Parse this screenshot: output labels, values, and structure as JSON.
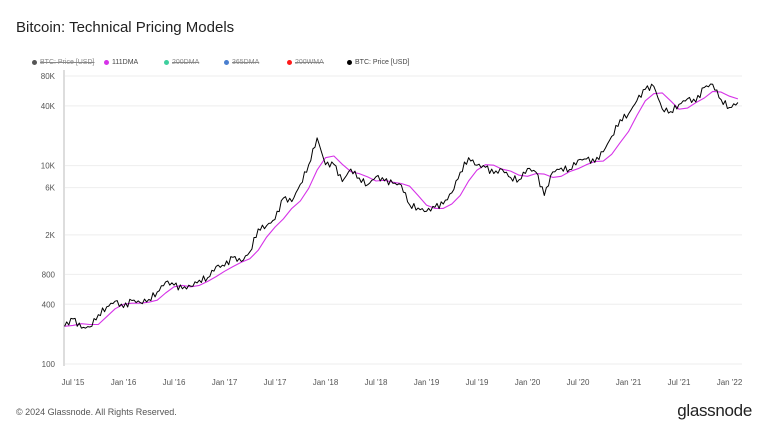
{
  "title": "Bitcoin: Technical Pricing Models",
  "legend": [
    {
      "label": "BTC: Price [USD]",
      "color": "#555555",
      "active": false
    },
    {
      "label": "111DMA",
      "color": "#d633e8",
      "active": true
    },
    {
      "label": "200DMA",
      "color": "#3ecf9e",
      "active": false
    },
    {
      "label": "365DMA",
      "color": "#4a7fcf",
      "active": false
    },
    {
      "label": "200WMA",
      "color": "#ff1a1a",
      "active": false
    },
    {
      "label": "BTC: Price [USD]",
      "color": "#000000",
      "active": true
    }
  ],
  "footer": "© 2024 Glassnode. All Rights Reserved.",
  "logo": "glassnode",
  "chart_data": {
    "type": "line",
    "title": "Bitcoin: Technical Pricing Models",
    "yscale": "log",
    "ylim": [
      100,
      80000
    ],
    "yticks": [
      {
        "v": 100,
        "label": "100"
      },
      {
        "v": 400,
        "label": "400"
      },
      {
        "v": 800,
        "label": "800"
      },
      {
        "v": 2000,
        "label": "2K"
      },
      {
        "v": 6000,
        "label": "6K"
      },
      {
        "v": 10000,
        "label": "10K"
      },
      {
        "v": 40000,
        "label": "40K"
      },
      {
        "v": 80000,
        "label": "80K"
      }
    ],
    "xticks": [
      "Jul '15",
      "Jan '16",
      "Jul '16",
      "Jan '17",
      "Jul '17",
      "Jan '18",
      "Jul '18",
      "Jan '19",
      "Jul '19",
      "Jan '20",
      "Jul '20",
      "Jan '21",
      "Jul '21",
      "Jan '22"
    ],
    "x_start": "2015-06",
    "grid": true,
    "legend_position": "top-left",
    "series": [
      {
        "name": "BTC: Price [USD]",
        "color": "#000000",
        "values": [
          240,
          285,
          230,
          236,
          314,
          377,
          430,
          370,
          437,
          416,
          448,
          531,
          673,
          624,
          573,
          608,
          700,
          742,
          963,
          970,
          1190,
          1080,
          1350,
          2300,
          2480,
          2870,
          4700,
          4340,
          6470,
          10200,
          19000,
          10200,
          10300,
          6900,
          9240,
          7490,
          6400,
          7730,
          7030,
          6630,
          6370,
          4020,
          3740,
          3460,
          3810,
          4100,
          5320,
          8570,
          12000,
          10100,
          9600,
          8300,
          9150,
          7570,
          7190,
          9350,
          8600,
          5000,
          8630,
          9460,
          9140,
          11350,
          11650,
          10780,
          13800,
          19700,
          29000,
          33100,
          45200,
          58800,
          63000,
          37300,
          35000,
          41500,
          47100,
          43800,
          61300,
          66000,
          46300,
          38500,
          43200
        ]
      },
      {
        "name": "111DMA",
        "color": "#d633e8",
        "values": [
          240,
          245,
          255,
          250,
          250,
          300,
          360,
          400,
          410,
          410,
          420,
          440,
          520,
          600,
          620,
          600,
          620,
          680,
          760,
          860,
          960,
          1060,
          1150,
          1400,
          1900,
          2400,
          2900,
          3700,
          4400,
          5900,
          9000,
          12000,
          12500,
          10300,
          8700,
          8300,
          7700,
          7000,
          7100,
          6800,
          6600,
          6200,
          5000,
          4000,
          3700,
          3700,
          4100,
          5000,
          7000,
          9000,
          10200,
          10100,
          9200,
          8800,
          8000,
          7800,
          8300,
          8200,
          7600,
          7800,
          8700,
          9300,
          10200,
          11000,
          11100,
          13000,
          17000,
          22000,
          32000,
          45000,
          53000,
          54000,
          45000,
          37000,
          38000,
          43000,
          48000,
          56000,
          55000,
          50000,
          47000
        ]
      }
    ]
  }
}
